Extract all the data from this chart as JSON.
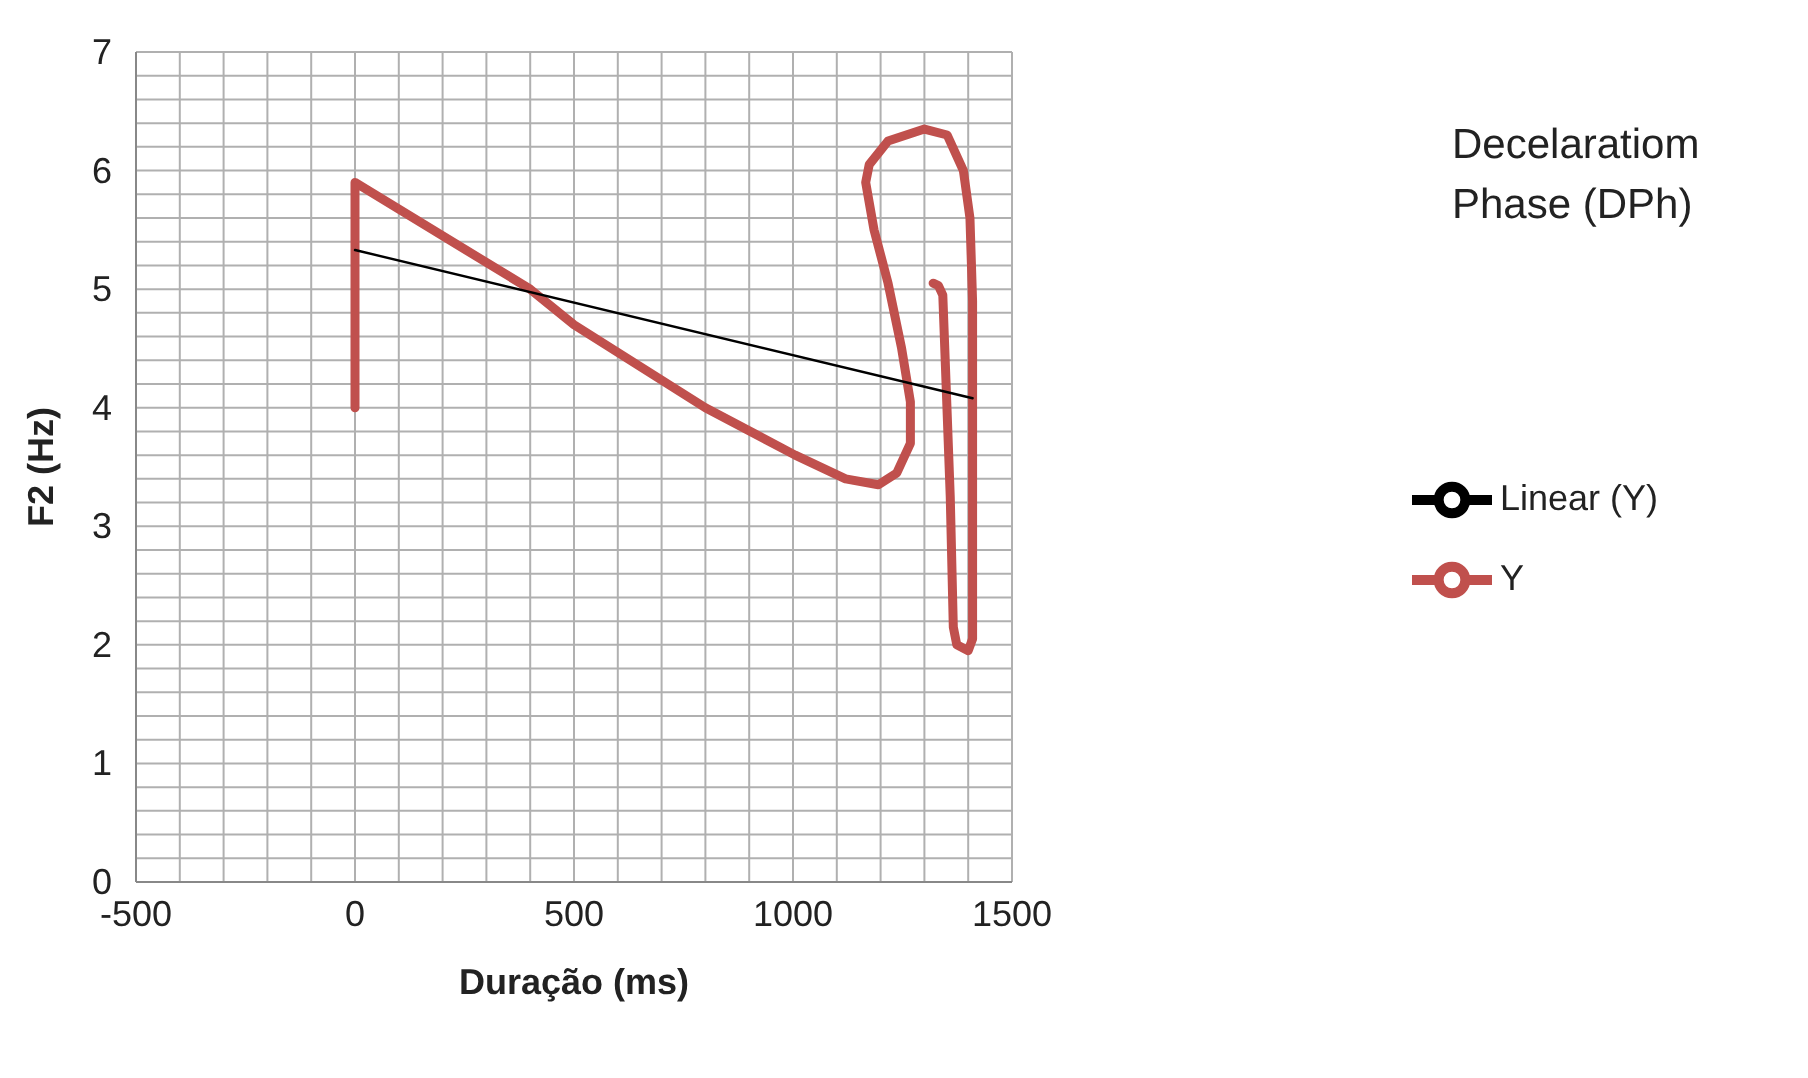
{
  "chart_data": {
    "type": "line",
    "title": "Decelaratiom Phase (DPh)",
    "xlabel": "Duração (ms)",
    "ylabel": "F2 (Hz)",
    "xlim": [
      -500,
      1500
    ],
    "xticks": [
      -500,
      {
        "value": -400,
        "label": null
      },
      {
        "value": -300,
        "label": null
      },
      {
        "value": -200,
        "label": null
      },
      {
        "value": -100,
        "label": null
      },
      0,
      {
        "value": 100,
        "label": null
      },
      {
        "value": 200,
        "label": null
      },
      {
        "value": 300,
        "label": null
      },
      {
        "value": 400,
        "label": null
      },
      500,
      {
        "value": 600,
        "label": null
      },
      {
        "value": 700,
        "label": null
      },
      {
        "value": 800,
        "label": null
      },
      {
        "value": 900,
        "label": null
      },
      1000,
      {
        "value": 1100,
        "label": null
      },
      {
        "value": 1200,
        "label": null
      },
      {
        "value": 1300,
        "label": null
      },
      {
        "value": 1400,
        "label": null
      },
      1500
    ],
    "ylim": [
      0,
      7
    ],
    "yticks": [
      0,
      {
        "value": 0.2,
        "label": null
      },
      {
        "value": 0.4,
        "label": null
      },
      {
        "value": 0.6,
        "label": null
      },
      {
        "value": 0.8,
        "label": null
      },
      1,
      {
        "value": 1.2,
        "label": null
      },
      {
        "value": 1.4,
        "label": null
      },
      {
        "value": 1.6,
        "label": null
      },
      {
        "value": 1.8,
        "label": null
      },
      2,
      {
        "value": 2.2,
        "label": null
      },
      {
        "value": 2.4,
        "label": null
      },
      {
        "value": 2.6,
        "label": null
      },
      {
        "value": 2.8,
        "label": null
      },
      3,
      {
        "value": 3.2,
        "label": null
      },
      {
        "value": 3.4,
        "label": null
      },
      {
        "value": 3.6,
        "label": null
      },
      {
        "value": 3.8,
        "label": null
      },
      4,
      {
        "value": 4.2,
        "label": null
      },
      {
        "value": 4.4,
        "label": null
      },
      {
        "value": 4.6,
        "label": null
      },
      {
        "value": 4.8,
        "label": null
      },
      5,
      {
        "value": 5.2,
        "label": null
      },
      {
        "value": 5.4,
        "label": null
      },
      {
        "value": 5.6,
        "label": null
      },
      {
        "value": 5.8,
        "label": null
      },
      6,
      {
        "value": 6.2,
        "label": null
      },
      {
        "value": 6.4,
        "label": null
      },
      {
        "value": 6.6,
        "label": null
      },
      {
        "value": 6.8,
        "label": null
      },
      7
    ],
    "grid": true,
    "legend": "right",
    "marker": "none",
    "series": [
      {
        "name": "Y",
        "color": "#c0504d",
        "x": [
          0,
          0,
          400,
          500,
          800,
          1005,
          1120,
          1195,
          1237,
          1268,
          1268,
          1248,
          1217,
          1185,
          1166,
          1174,
          1217,
          1300,
          1352,
          1389,
          1404,
          1410,
          1410,
          1410,
          1410,
          1400,
          1374,
          1366,
          1359,
          1348,
          1342,
          1332,
          1320
        ],
        "values": [
          4.0,
          5.9,
          5.0,
          4.7,
          4.0,
          3.6,
          3.4,
          3.35,
          3.45,
          3.7,
          4.05,
          4.5,
          5.05,
          5.5,
          5.9,
          6.05,
          6.25,
          6.35,
          6.3,
          6.0,
          5.6,
          4.9,
          3.8,
          2.7,
          2.05,
          1.95,
          2.0,
          2.15,
          3.25,
          4.35,
          4.95,
          5.03,
          5.05
        ]
      },
      {
        "name": "Linear (Y)",
        "color": "#000000",
        "x": [
          0,
          1410
        ],
        "values": [
          5.33,
          4.08
        ]
      }
    ]
  }
}
